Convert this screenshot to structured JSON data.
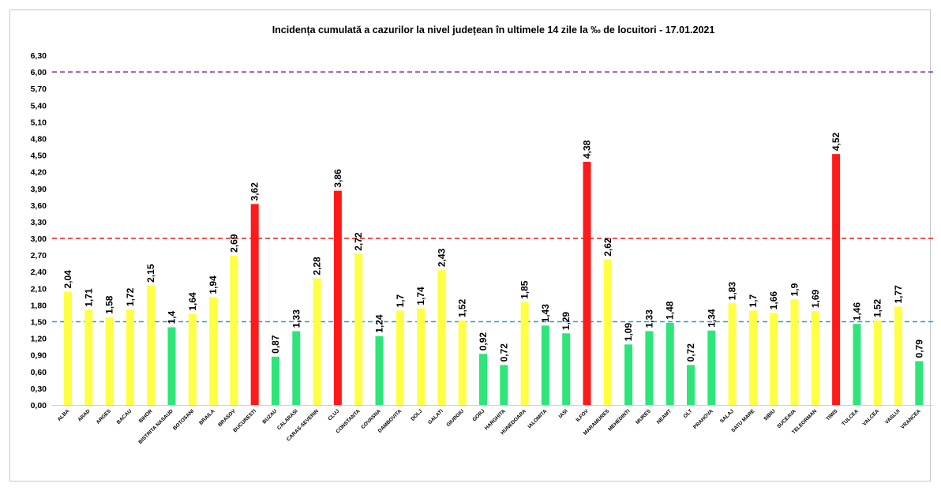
{
  "chart_data": {
    "type": "bar",
    "title": "Incidența cumulată a cazurilor la nivel județean în ultimele 14 zile la ‰ de locuitori - 17.01.2021",
    "xlabel": "",
    "ylabel": "",
    "ylim": [
      0,
      6.3
    ],
    "yticks": [
      "0,00",
      "0,30",
      "0,60",
      "0,90",
      "1,20",
      "1,50",
      "1,80",
      "2,10",
      "2,40",
      "2,70",
      "3,00",
      "3,30",
      "3,60",
      "3,90",
      "4,20",
      "4,50",
      "4,80",
      "5,10",
      "5,40",
      "5,70",
      "6,00",
      "6,30"
    ],
    "grid": false,
    "categories": [
      "ALBA",
      "ARAD",
      "ARGES",
      "BACAU",
      "BIHOR",
      "BISTRITA NASAUD",
      "BOTOSANI",
      "BRAILA",
      "BRASOV",
      "BUCURESTI",
      "BUZAU",
      "CALARASI",
      "CARAS-SEVERIN",
      "CLUJ",
      "CONSTANTA",
      "COVASNA",
      "DAMBOVITA",
      "DOLJ",
      "GALATI",
      "GIURGIU",
      "GORJ",
      "HARGHITA",
      "HUNEDOARA",
      "IALOMITA",
      "IASI",
      "ILFOV",
      "MARAMURES",
      "MEHEDINTI",
      "MURES",
      "NEAMT",
      "OLT",
      "PRAHOVA",
      "SALAJ",
      "SATU MARE",
      "SIBIU",
      "SUCEAVA",
      "TELEORMAN",
      "TIMIS",
      "TULCEA",
      "VALCEA",
      "VASLUI",
      "VRANCEA"
    ],
    "values": [
      2.04,
      1.71,
      1.58,
      1.72,
      2.15,
      1.4,
      1.64,
      1.94,
      2.69,
      3.62,
      0.87,
      1.33,
      2.28,
      3.86,
      2.72,
      1.24,
      1.7,
      1.74,
      2.43,
      1.52,
      0.92,
      0.72,
      1.85,
      1.43,
      1.29,
      4.38,
      2.62,
      1.09,
      1.33,
      1.48,
      0.72,
      1.34,
      1.83,
      1.7,
      1.66,
      1.9,
      1.69,
      4.52,
      1.46,
      1.52,
      1.77,
      0.79
    ],
    "value_labels": [
      "2,04",
      "1,71",
      "1,58",
      "1,72",
      "2,15",
      "1,4",
      "1,64",
      "1,94",
      "2,69",
      "3,62",
      "0,87",
      "1,33",
      "2,28",
      "3,86",
      "2,72",
      "1,24",
      "1,7",
      "1,74",
      "2,43",
      "1,52",
      "0,92",
      "0,72",
      "1,85",
      "1,43",
      "1,29",
      "4,38",
      "2,62",
      "1,09",
      "1,33",
      "1,48",
      "0,72",
      "1,34",
      "1,83",
      "1,7",
      "1,66",
      "1,9",
      "1,69",
      "4,52",
      "1,46",
      "1,52",
      "1,77",
      "0,79"
    ],
    "colors": {
      "green": "#2ee57a",
      "yellow": "#ffff44",
      "red": "#ff1a1a"
    },
    "thresholds": [
      {
        "value": 1.5,
        "color": "#1fa0e0",
        "style": "dashed"
      },
      {
        "value": 3.0,
        "color": "#e81c1c",
        "style": "dashed"
      },
      {
        "value": 6.0,
        "color": "#7030a0",
        "style": "dashed"
      }
    ]
  }
}
